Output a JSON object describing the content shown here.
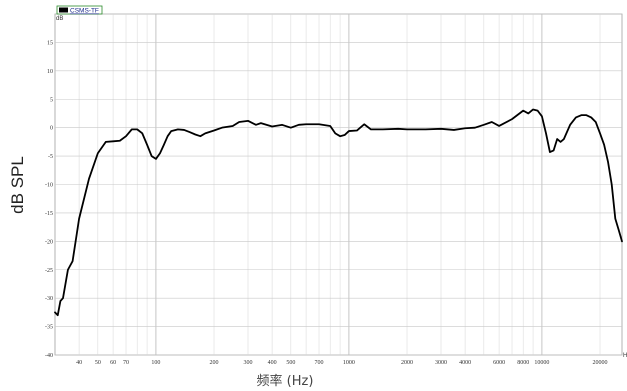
{
  "chart_data": {
    "type": "line",
    "title": "",
    "ylabel": "dB SPL",
    "xlabel": "频率 (Hz)",
    "y_unit": "dB",
    "x_unit": "H",
    "x_scale": "log",
    "xlim": [
      30,
      26000
    ],
    "ylim": [
      -40,
      20
    ],
    "grid": true,
    "legend_position": "top-left",
    "y_ticks": [
      15,
      10,
      5,
      0,
      -5,
      -10,
      -15,
      -20,
      -25,
      -30,
      -35,
      -40
    ],
    "x_ticks": [
      {
        "value": 40,
        "label": "40"
      },
      {
        "value": 50,
        "label": "50"
      },
      {
        "value": 60,
        "label": "60"
      },
      {
        "value": 70,
        "label": "70"
      },
      {
        "value": 100,
        "label": "100"
      },
      {
        "value": 200,
        "label": "200"
      },
      {
        "value": 300,
        "label": "300"
      },
      {
        "value": 400,
        "label": "400"
      },
      {
        "value": 500,
        "label": "500"
      },
      {
        "value": 700,
        "label": "700"
      },
      {
        "value": 1000,
        "label": "1000"
      },
      {
        "value": 2000,
        "label": "2000"
      },
      {
        "value": 3000,
        "label": "3000"
      },
      {
        "value": 4000,
        "label": "4000"
      },
      {
        "value": 6000,
        "label": "6000"
      },
      {
        "value": 8000,
        "label": "8000"
      },
      {
        "value": 10000,
        "label": "10000"
      },
      {
        "value": 20000,
        "label": "20000"
      }
    ],
    "series": [
      {
        "name": "CSMS-TF",
        "color": "#000000",
        "x": [
          30,
          31,
          32,
          33,
          35,
          37,
          40,
          45,
          50,
          55,
          60,
          65,
          70,
          75,
          80,
          85,
          90,
          95,
          100,
          105,
          110,
          115,
          120,
          130,
          140,
          150,
          160,
          170,
          180,
          200,
          220,
          250,
          270,
          300,
          330,
          350,
          400,
          450,
          500,
          550,
          600,
          700,
          800,
          850,
          900,
          950,
          1000,
          1100,
          1200,
          1300,
          1500,
          1800,
          2000,
          2500,
          3000,
          3500,
          4000,
          4500,
          5000,
          5500,
          6000,
          7000,
          8000,
          8500,
          9000,
          9500,
          10000,
          10500,
          11000,
          11500,
          12000,
          12500,
          13000,
          14000,
          15000,
          16000,
          17000,
          18000,
          19000,
          20000,
          21000,
          22000,
          23000,
          24000,
          25000,
          26000
        ],
        "y": [
          -32.5,
          -33,
          -30.5,
          -30,
          -25,
          -23.5,
          -16,
          -9,
          -4.5,
          -2.5,
          -2.4,
          -2.3,
          -1.5,
          -0.3,
          -0.3,
          -1,
          -3,
          -5,
          -5.5,
          -4.5,
          -3,
          -1.5,
          -0.6,
          -0.3,
          -0.4,
          -0.8,
          -1.2,
          -1.5,
          -1,
          -0.5,
          0,
          0.3,
          1,
          1.2,
          0.5,
          0.8,
          0.2,
          0.5,
          0,
          0.5,
          0.6,
          0.6,
          0.3,
          -1,
          -1.5,
          -1.3,
          -0.6,
          -0.5,
          0.6,
          -0.3,
          -0.3,
          -0.2,
          -0.3,
          -0.3,
          -0.2,
          -0.4,
          -0.1,
          0,
          0.5,
          1,
          0.3,
          1.5,
          3,
          2.5,
          3.2,
          3,
          2,
          -1,
          -4.3,
          -4,
          -2,
          -2.5,
          -2,
          0.5,
          1.8,
          2.2,
          2.2,
          1.8,
          1,
          -1,
          -3,
          -6,
          -10,
          -16,
          -18,
          -20
        ]
      }
    ]
  },
  "legend": {
    "label": "CSMS-TF"
  }
}
